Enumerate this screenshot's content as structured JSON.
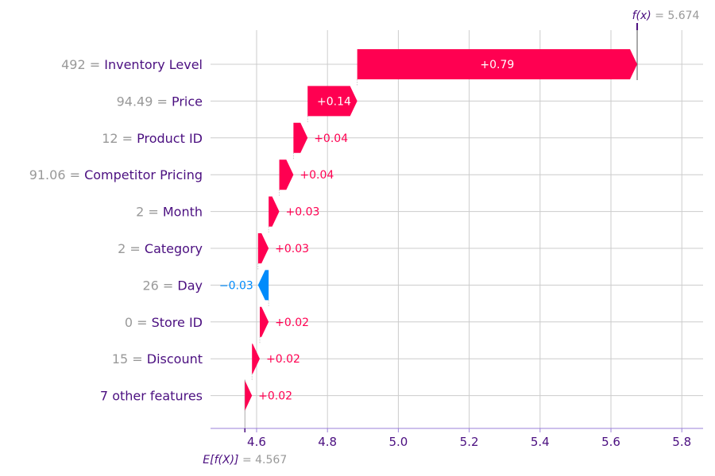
{
  "chart_data": {
    "type": "waterfall",
    "base_value": 4.567,
    "base_label": "E[f(X)] = 4.567",
    "output_value": 5.674,
    "output_label": "f(x) = 5.674",
    "xlim": [
      4.47,
      5.86
    ],
    "xticks": [
      4.6,
      4.8,
      5.0,
      5.2,
      5.4,
      5.6,
      5.8
    ],
    "xtick_labels": [
      "4.6",
      "4.8",
      "5.0",
      "5.2",
      "5.4",
      "5.6",
      "5.8"
    ],
    "features": [
      {
        "value": "492 =",
        "name": "Inventory Level",
        "contribution": 0.79,
        "label": "+0.79",
        "start": 4.884,
        "end": 5.674
      },
      {
        "value": "94.49 =",
        "name": "Price",
        "contribution": 0.14,
        "label": "+0.14",
        "start": 4.744,
        "end": 4.884
      },
      {
        "value": "12 =",
        "name": "Product ID",
        "contribution": 0.04,
        "label": "+0.04",
        "start": 4.704,
        "end": 4.744
      },
      {
        "value": "91.06 =",
        "name": "Competitor Pricing",
        "contribution": 0.04,
        "label": "+0.04",
        "start": 4.664,
        "end": 4.704
      },
      {
        "value": "2 =",
        "name": "Month",
        "contribution": 0.03,
        "label": "+0.03",
        "start": 4.634,
        "end": 4.664
      },
      {
        "value": "2 =",
        "name": "Category",
        "contribution": 0.03,
        "label": "+0.03",
        "start": 4.604,
        "end": 4.634
      },
      {
        "value": "26 =",
        "name": "Day",
        "contribution": -0.03,
        "label": "−0.03",
        "start": 4.634,
        "end": 4.604
      },
      {
        "value": "0 =",
        "name": "Store ID",
        "contribution": 0.02,
        "label": "+0.02",
        "start": 4.609,
        "end": 4.634
      },
      {
        "value": "15 =",
        "name": "Discount",
        "contribution": 0.02,
        "label": "+0.02",
        "start": 4.587,
        "end": 4.609
      },
      {
        "value": "",
        "name": "7 other features",
        "contribution": 0.02,
        "label": "+0.02",
        "start": 4.567,
        "end": 4.587
      }
    ],
    "colors": {
      "positive": "#ff0051",
      "negative": "#008bfb",
      "name_text": "#4b0f80",
      "value_text": "#999999",
      "axis": "#9b80d9",
      "grid": "#cccccc"
    }
  }
}
